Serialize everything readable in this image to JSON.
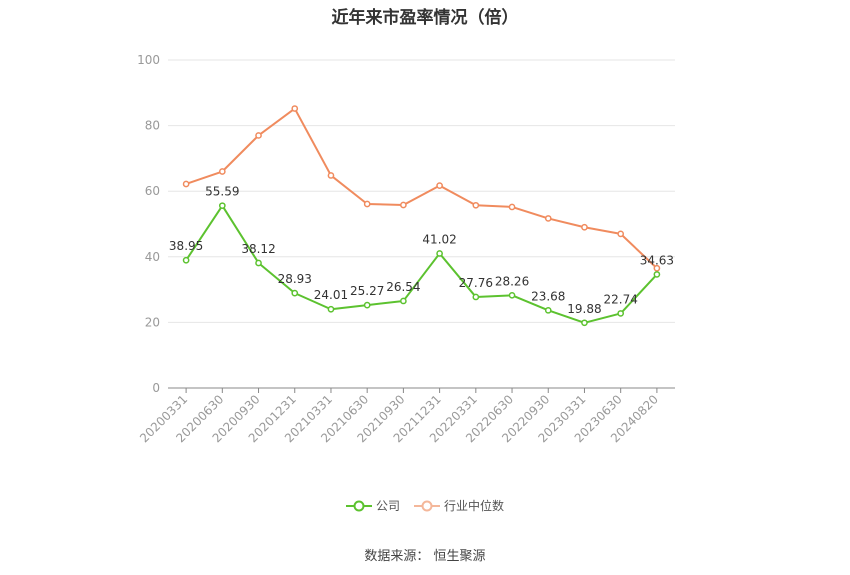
{
  "title": "近年来市盈率情况（倍）",
  "source": "数据来源：  恒生聚源",
  "colors": {
    "company": "#5cc22f",
    "industry": "#f08b5e",
    "grid": "#e6e6e6",
    "axis": "#888888"
  },
  "chart_data": {
    "type": "line",
    "title": "近年来市盈率情况（倍）",
    "xlabel": "",
    "ylabel": "",
    "ylim": [
      0,
      100
    ],
    "yticks": [
      0,
      20,
      40,
      60,
      80,
      100
    ],
    "grid": true,
    "legend_position": "bottom",
    "categories": [
      "20200331",
      "20200630",
      "20200930",
      "20201231",
      "20210331",
      "20210630",
      "20210930",
      "20211231",
      "20220331",
      "20220630",
      "20220930",
      "20230331",
      "20230630",
      "20240820"
    ],
    "series": [
      {
        "name": "公司",
        "color": "#5cc22f",
        "values": [
          38.95,
          55.59,
          38.12,
          28.93,
          24.01,
          25.27,
          26.54,
          41.02,
          27.76,
          28.26,
          23.68,
          19.88,
          22.74,
          34.63
        ],
        "labels": [
          "38.95",
          "55.59",
          "38.12",
          "28.93",
          "24.01",
          "25.27",
          "26.54",
          "41.02",
          "27.76",
          "28.26",
          "23.68",
          "19.88",
          "22.74",
          "34.63"
        ]
      },
      {
        "name": "行业中位数",
        "color": "#f08b5e",
        "values": [
          62.2,
          66.0,
          77.0,
          85.2,
          64.8,
          56.1,
          55.8,
          61.7,
          55.7,
          55.2,
          51.7,
          49.0,
          47.0,
          36.5
        ]
      }
    ]
  }
}
